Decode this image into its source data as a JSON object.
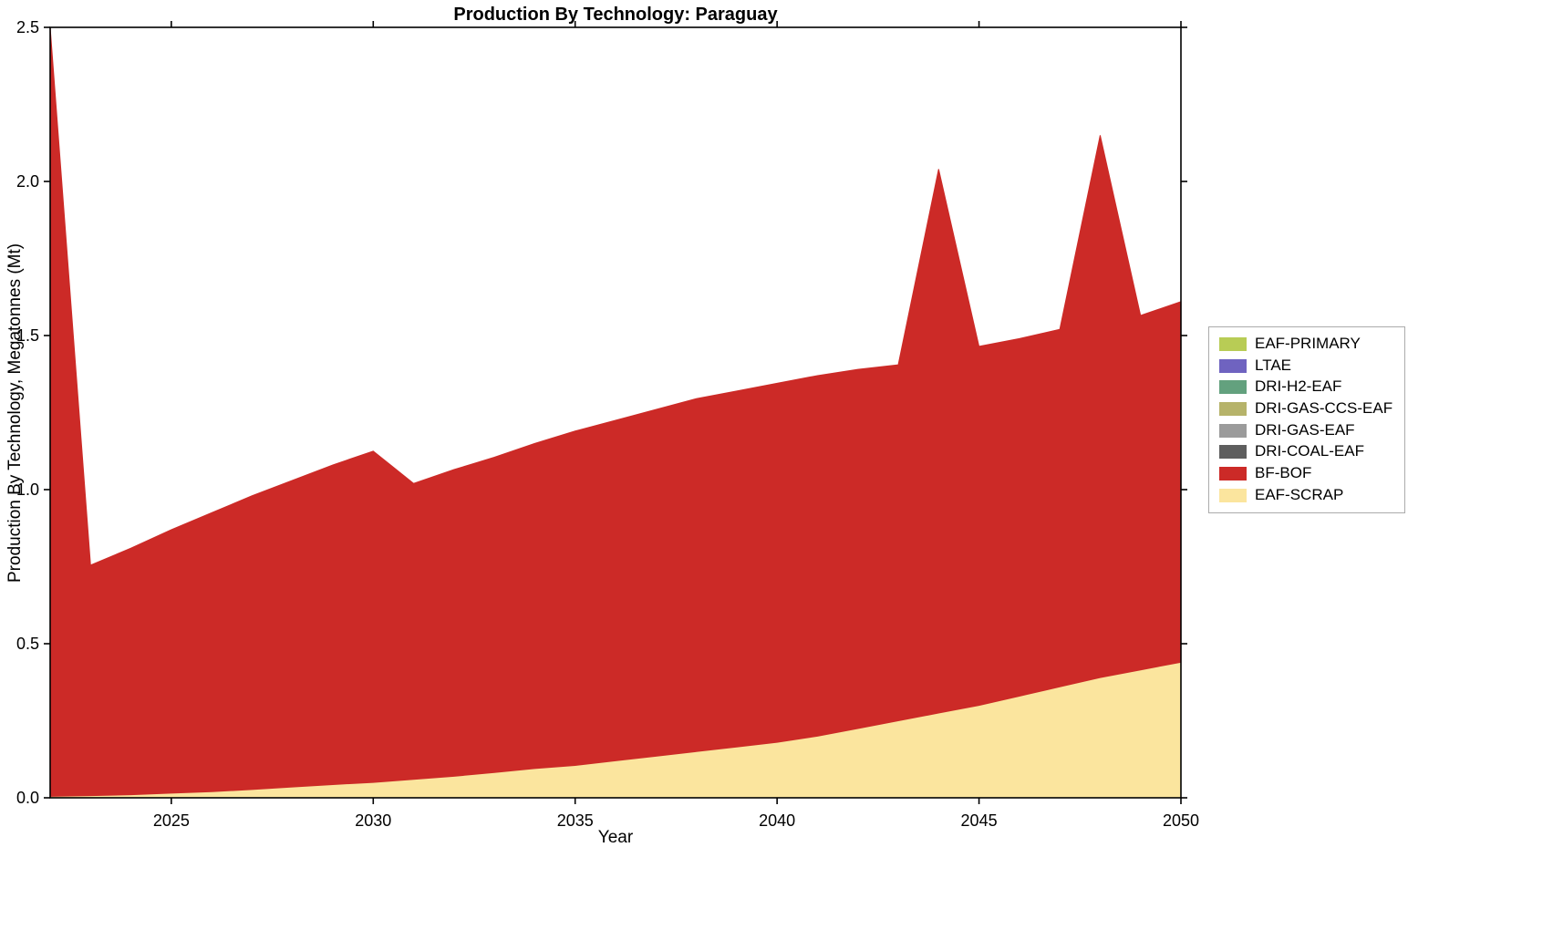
{
  "chart_data": {
    "type": "area",
    "stacked": true,
    "title": "Production By Technology: Paraguay",
    "xlabel": "Year",
    "ylabel": "Production By Technology, Megatonnes (Mt)",
    "xlim": [
      2022,
      2050
    ],
    "ylim": [
      0,
      2.5
    ],
    "xticks": [
      2025,
      2030,
      2035,
      2040,
      2045,
      2050
    ],
    "yticks": [
      0,
      0.5,
      1,
      1.5,
      2,
      2.5
    ],
    "grid": false,
    "legend_position": "right-outside",
    "x": [
      2022,
      2023,
      2024,
      2025,
      2026,
      2027,
      2028,
      2029,
      2030,
      2031,
      2032,
      2033,
      2034,
      2035,
      2036,
      2037,
      2038,
      2039,
      2040,
      2041,
      2042,
      2043,
      2044,
      2045,
      2046,
      2047,
      2048,
      2049,
      2050
    ],
    "series": [
      {
        "name": "EAF-SCRAP",
        "color": "#fbe59e",
        "values": [
          0.005,
          0.007,
          0.01,
          0.015,
          0.02,
          0.027,
          0.035,
          0.043,
          0.05,
          0.06,
          0.07,
          0.082,
          0.095,
          0.105,
          0.12,
          0.135,
          0.15,
          0.165,
          0.18,
          0.2,
          0.225,
          0.25,
          0.275,
          0.3,
          0.33,
          0.36,
          0.39,
          0.415,
          0.44
        ]
      },
      {
        "name": "BF-BOF",
        "color": "#cc2a27",
        "values": [
          2.495,
          0.748,
          0.8,
          0.855,
          0.905,
          0.953,
          0.995,
          1.037,
          1.075,
          0.96,
          0.995,
          1.023,
          1.055,
          1.085,
          1.105,
          1.125,
          1.145,
          1.155,
          1.165,
          1.17,
          1.165,
          1.155,
          1.765,
          1.165,
          1.16,
          1.16,
          1.76,
          1.15,
          1.17
        ]
      },
      {
        "name": "DRI-COAL-EAF",
        "color": "#5e5e5e",
        "values": [
          0,
          0,
          0,
          0,
          0,
          0,
          0,
          0,
          0,
          0,
          0,
          0,
          0,
          0,
          0,
          0,
          0,
          0,
          0,
          0,
          0,
          0,
          0,
          0,
          0,
          0,
          0,
          0,
          0
        ]
      },
      {
        "name": "DRI-GAS-EAF",
        "color": "#9b9b9b",
        "values": [
          0,
          0,
          0,
          0,
          0,
          0,
          0,
          0,
          0,
          0,
          0,
          0,
          0,
          0,
          0,
          0,
          0,
          0,
          0,
          0,
          0,
          0,
          0,
          0,
          0,
          0,
          0,
          0,
          0
        ]
      },
      {
        "name": "DRI-GAS-CCS-EAF",
        "color": "#b6b36a",
        "values": [
          0,
          0,
          0,
          0,
          0,
          0,
          0,
          0,
          0,
          0,
          0,
          0,
          0,
          0,
          0,
          0,
          0,
          0,
          0,
          0,
          0,
          0,
          0,
          0,
          0,
          0,
          0,
          0,
          0
        ]
      },
      {
        "name": "DRI-H2-EAF",
        "color": "#63a17e",
        "values": [
          0,
          0,
          0,
          0,
          0,
          0,
          0,
          0,
          0,
          0,
          0,
          0,
          0,
          0,
          0,
          0,
          0,
          0,
          0,
          0,
          0,
          0,
          0,
          0,
          0,
          0,
          0,
          0,
          0
        ]
      },
      {
        "name": "LTAE",
        "color": "#6f63c0",
        "values": [
          0,
          0,
          0,
          0,
          0,
          0,
          0,
          0,
          0,
          0,
          0,
          0,
          0,
          0,
          0,
          0,
          0,
          0,
          0,
          0,
          0,
          0,
          0,
          0,
          0,
          0,
          0,
          0,
          0
        ]
      },
      {
        "name": "EAF-PRIMARY",
        "color": "#b8cc55",
        "values": [
          0,
          0,
          0,
          0,
          0,
          0,
          0,
          0,
          0,
          0,
          0,
          0,
          0,
          0,
          0,
          0,
          0,
          0,
          0,
          0,
          0,
          0,
          0,
          0,
          0,
          0,
          0,
          0,
          0
        ]
      }
    ],
    "legend": [
      {
        "label": "EAF-PRIMARY",
        "color": "#b8cc55"
      },
      {
        "label": "LTAE",
        "color": "#6f63c0"
      },
      {
        "label": "DRI-H2-EAF",
        "color": "#63a17e"
      },
      {
        "label": "DRI-GAS-CCS-EAF",
        "color": "#b6b36a"
      },
      {
        "label": "DRI-GAS-EAF",
        "color": "#9b9b9b"
      },
      {
        "label": "DRI-COAL-EAF",
        "color": "#5e5e5e"
      },
      {
        "label": "BF-BOF",
        "color": "#cc2a27"
      },
      {
        "label": "EAF-SCRAP",
        "color": "#fbe59e"
      }
    ]
  }
}
